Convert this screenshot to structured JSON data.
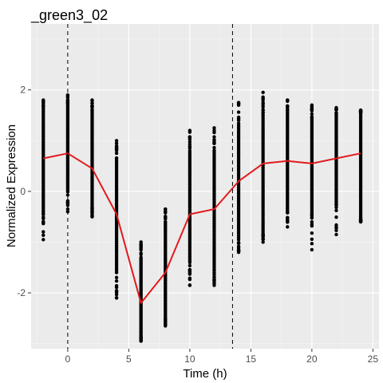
{
  "chart_data": {
    "type": "scatter",
    "title": "_green3_02",
    "xlabel": "Time (h)",
    "ylabel": "Normalized Expression",
    "xlim": [
      -3,
      25.5
    ],
    "ylim": [
      -3.1,
      3.3
    ],
    "x_ticks": [
      0,
      5,
      10,
      15,
      20,
      25
    ],
    "y_ticks": [
      -2,
      0,
      2
    ],
    "grid": true,
    "legend": "none",
    "colors": {
      "panel": "#ebebeb",
      "grid_major": "#ffffff",
      "grid_minor": "#f5f5f5",
      "points": "#000000",
      "mean_line": "#e31a1c",
      "vline": "#000000"
    },
    "vlines": [
      0,
      13.5
    ],
    "points": [
      {
        "x": -2,
        "min": -0.95,
        "max": 1.8,
        "low": -0.45,
        "high": 1.65
      },
      {
        "x": 0,
        "min": -0.4,
        "max": 1.9,
        "low": 0.05,
        "high": 1.7
      },
      {
        "x": 2,
        "min": -0.5,
        "max": 1.8,
        "low": -0.3,
        "high": 1.6
      },
      {
        "x": 4,
        "min": -2.1,
        "max": 1.0,
        "low": -1.6,
        "high": 0.65
      },
      {
        "x": 6,
        "min": -2.95,
        "max": -1.0,
        "low": -2.85,
        "high": -1.3
      },
      {
        "x": 8,
        "min": -2.65,
        "max": -0.35,
        "low": -2.5,
        "high": -0.6
      },
      {
        "x": 10,
        "min": -1.85,
        "max": 1.2,
        "low": -1.4,
        "high": 0.8
      },
      {
        "x": 12,
        "min": -1.85,
        "max": 1.25,
        "low": -1.55,
        "high": 0.8
      },
      {
        "x": 14,
        "min": -1.2,
        "max": 1.75,
        "low": -0.95,
        "high": 1.3
      },
      {
        "x": 16,
        "min": -1.0,
        "max": 1.95,
        "low": -0.8,
        "high": 1.55
      },
      {
        "x": 18,
        "min": -0.7,
        "max": 1.8,
        "low": -0.4,
        "high": 1.6
      },
      {
        "x": 20,
        "min": -1.15,
        "max": 1.7,
        "low": -0.45,
        "high": 1.45
      },
      {
        "x": 22,
        "min": -0.85,
        "max": 1.65,
        "low": -0.2,
        "high": 1.5
      },
      {
        "x": 24,
        "min": -0.6,
        "max": 1.6,
        "low": -0.5,
        "high": 1.55
      }
    ],
    "series": [
      {
        "x": [
          -2,
          0,
          2,
          4,
          6,
          8,
          10,
          12,
          14,
          16,
          18,
          20,
          22,
          24
        ],
        "values": [
          0.65,
          0.75,
          0.45,
          -0.45,
          -2.2,
          -1.6,
          -0.45,
          -0.35,
          0.2,
          0.55,
          0.6,
          0.55,
          0.65,
          0.75
        ]
      }
    ]
  }
}
